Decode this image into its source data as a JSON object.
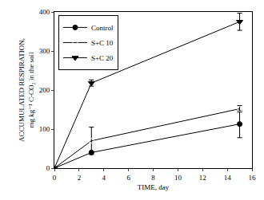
{
  "chart_data": {
    "type": "line",
    "xlabel": "TIME, day",
    "ylabel": "ACCUMULATED RESPIRATION,\nmg kg⁻¹ C-CO₂ in the soil",
    "x": [
      0,
      3,
      15
    ],
    "series": [
      {
        "name": "Control",
        "color": "#000000",
        "marker": "circle",
        "values": [
          0,
          40,
          113
        ],
        "errors": [
          0,
          3,
          35
        ]
      },
      {
        "name": "S+C 10",
        "color": "#000000",
        "marker": "circle-open",
        "values": [
          0,
          70,
          152
        ],
        "errors": [
          0,
          35,
          8
        ]
      },
      {
        "name": "S+C 20",
        "color": "#000000",
        "marker": "triangle-down",
        "values": [
          0,
          218,
          375
        ],
        "errors": [
          0,
          8,
          22
        ]
      }
    ],
    "xlim": [
      0,
      16
    ],
    "xticks": [
      0,
      2,
      4,
      6,
      8,
      10,
      12,
      14,
      16
    ],
    "ylim": [
      0,
      400
    ],
    "yticks": [
      0,
      100,
      200,
      300,
      400
    ],
    "grid": false,
    "legend": "upper left"
  }
}
